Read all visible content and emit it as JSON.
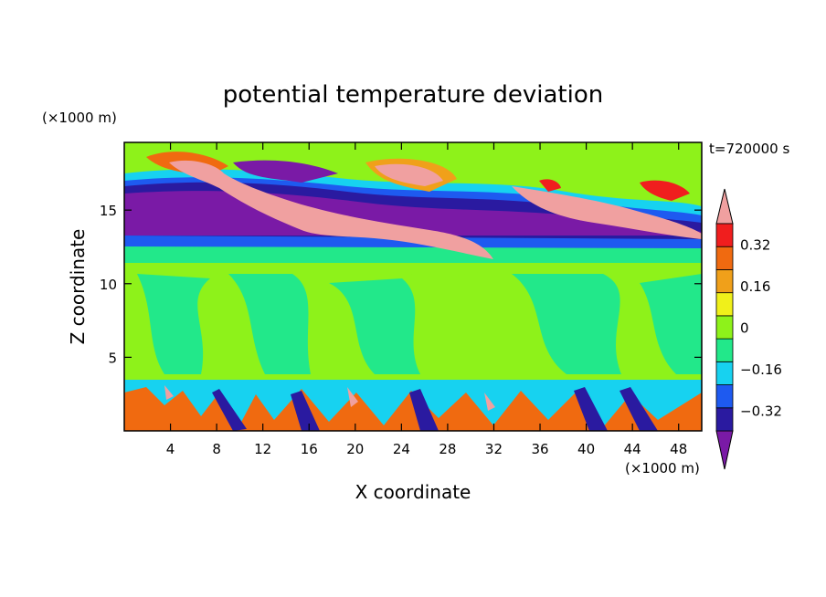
{
  "chart_data": {
    "type": "heatmap",
    "title": "potential temperature deviation",
    "xlabel": "X coordinate",
    "ylabel": "Z coordinate",
    "x_unit": "(×1000 m)",
    "y_unit": "(×1000 m)",
    "time_label": "t=720000 s",
    "xlim": [
      0,
      50
    ],
    "ylim": [
      0,
      19.6
    ],
    "x_ticks": [
      4,
      8,
      12,
      16,
      20,
      24,
      28,
      32,
      36,
      40,
      44,
      48
    ],
    "y_ticks": [
      5,
      10,
      15
    ],
    "grid": false,
    "colorbar": {
      "levels": [
        -0.4,
        -0.32,
        -0.24,
        -0.16,
        -0.08,
        0,
        0.08,
        0.16,
        0.24,
        0.32,
        0.4
      ],
      "tick_labels": [
        {
          "value": 0.32,
          "label": "0.32"
        },
        {
          "value": 0.16,
          "label": "0.16"
        },
        {
          "value": 0,
          "label": "0"
        },
        {
          "value": -0.16,
          "label": "−0.16"
        },
        {
          "value": -0.32,
          "label": "−0.32"
        }
      ],
      "colors": [
        "#7a1aa6",
        "#2a1aa0",
        "#1e5af0",
        "#17d2f0",
        "#22e88a",
        "#8ef21a",
        "#f0f01a",
        "#f0a01a",
        "#f06a10",
        "#f01e1e",
        "#f0a0a0"
      ],
      "extend": "both"
    }
  }
}
